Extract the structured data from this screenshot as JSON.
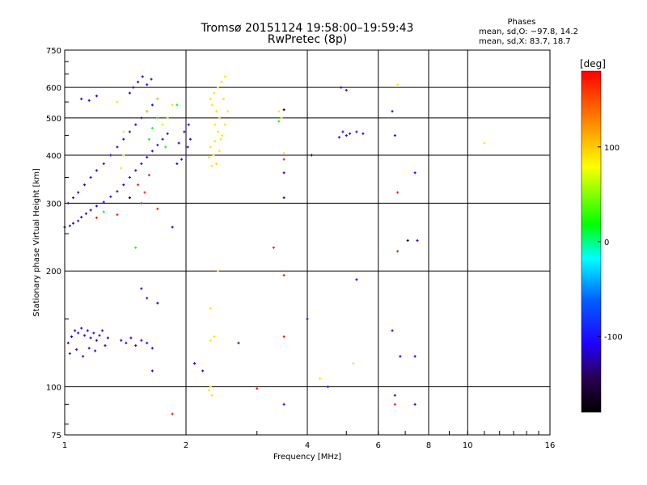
{
  "header": {
    "title_line1": "Tromsø 20151124 19:58:00–19:59:43",
    "title_line2": "RwPretec (8p)"
  },
  "phase_stats": {
    "title": "Phases",
    "o_line": "mean, sd,O: −97.8, 14.2",
    "x_line": "mean, sd,X:  83.7, 18.7"
  },
  "chart_data": {
    "type": "scatter",
    "title": "Tromsø 20151124 19:58:00–19:59:43",
    "subtitle": "RwPretec (8p)",
    "xlabel": "Frequency [MHz]",
    "ylabel": "Stationary phase Virtual Height [km]",
    "x_scale": "log",
    "y_scale": "log",
    "xlim": [
      1,
      16
    ],
    "ylim": [
      75,
      750
    ],
    "x_ticks": [
      1,
      2,
      4,
      6,
      8,
      10,
      16
    ],
    "x_tick_labels": [
      "1",
      "2",
      "4",
      "6",
      "8",
      "10",
      "16"
    ],
    "y_ticks": [
      75,
      100,
      200,
      300,
      400,
      500,
      600,
      750
    ],
    "y_tick_labels": [
      "75",
      "100",
      "200",
      "300",
      "400",
      "500",
      "600",
      "750"
    ],
    "grid": true,
    "colorbar": {
      "unit_label": "[deg]",
      "range": [
        -180,
        180
      ],
      "ticks": [
        100,
        0,
        -100
      ],
      "tick_labels": [
        "100",
        "0",
        "-100"
      ]
    },
    "series": [
      {
        "color_deg": -110,
        "points": [
          [
            1.0,
            260
          ],
          [
            1.03,
            262
          ],
          [
            1.05,
            266
          ],
          [
            1.08,
            270
          ],
          [
            1.1,
            276
          ],
          [
            1.13,
            282
          ],
          [
            1.16,
            288
          ],
          [
            1.2,
            295
          ],
          [
            1.25,
            302
          ],
          [
            1.3,
            312
          ],
          [
            1.35,
            322
          ],
          [
            1.4,
            335
          ],
          [
            1.45,
            350
          ],
          [
            1.5,
            365
          ],
          [
            1.55,
            380
          ],
          [
            1.6,
            395
          ],
          [
            1.65,
            410
          ],
          [
            1.7,
            425
          ],
          [
            1.75,
            440
          ],
          [
            1.8,
            455
          ],
          [
            1.02,
            300
          ],
          [
            1.05,
            310
          ],
          [
            1.08,
            320
          ],
          [
            1.12,
            335
          ],
          [
            1.16,
            350
          ],
          [
            1.2,
            365
          ],
          [
            1.25,
            380
          ],
          [
            1.3,
            400
          ],
          [
            1.35,
            420
          ],
          [
            1.4,
            440
          ],
          [
            1.45,
            460
          ],
          [
            1.5,
            480
          ],
          [
            1.55,
            500
          ],
          [
            1.6,
            520
          ],
          [
            1.65,
            540
          ],
          [
            1.7,
            560
          ],
          [
            1.9,
            380
          ],
          [
            1.95,
            390
          ],
          [
            2.0,
            400
          ],
          [
            2.02,
            420
          ],
          [
            2.05,
            440
          ],
          [
            1.92,
            430
          ],
          [
            1.98,
            460
          ],
          [
            2.03,
            480
          ],
          [
            1.48,
            600
          ],
          [
            1.52,
            620
          ],
          [
            1.56,
            640
          ],
          [
            1.6,
            610
          ],
          [
            1.45,
            580
          ],
          [
            1.64,
            630
          ],
          [
            1.1,
            560
          ],
          [
            1.15,
            555
          ],
          [
            1.2,
            570
          ],
          [
            1.02,
            130
          ],
          [
            1.04,
            135
          ],
          [
            1.06,
            140
          ],
          [
            1.08,
            138
          ],
          [
            1.1,
            142
          ],
          [
            1.12,
            136
          ],
          [
            1.14,
            140
          ],
          [
            1.16,
            134
          ],
          [
            1.18,
            138
          ],
          [
            1.2,
            132
          ],
          [
            1.22,
            136
          ],
          [
            1.24,
            140
          ],
          [
            1.26,
            128
          ],
          [
            1.28,
            134
          ],
          [
            1.03,
            122
          ],
          [
            1.07,
            125
          ],
          [
            1.11,
            120
          ],
          [
            1.15,
            126
          ],
          [
            1.19,
            124
          ],
          [
            1.38,
            132
          ],
          [
            1.42,
            130
          ],
          [
            1.46,
            134
          ],
          [
            1.5,
            128
          ],
          [
            1.55,
            132
          ],
          [
            1.6,
            130
          ],
          [
            1.65,
            126
          ],
          [
            1.55,
            180
          ],
          [
            1.6,
            170
          ],
          [
            1.7,
            165
          ],
          [
            1.65,
            110
          ],
          [
            1.85,
            260
          ],
          [
            4.9,
            460
          ],
          [
            5.0,
            450
          ],
          [
            5.1,
            455
          ],
          [
            5.3,
            460
          ],
          [
            5.5,
            455
          ],
          [
            4.8,
            445
          ],
          [
            4.85,
            600
          ],
          [
            5.0,
            590
          ],
          [
            2.1,
            115
          ],
          [
            2.2,
            110
          ],
          [
            2.7,
            130
          ],
          [
            3.5,
            360
          ],
          [
            3.5,
            310
          ],
          [
            3.5,
            90
          ],
          [
            4.0,
            150
          ],
          [
            4.5,
            100
          ],
          [
            5.3,
            190
          ],
          [
            6.5,
            140
          ],
          [
            6.5,
            520
          ],
          [
            6.6,
            450
          ],
          [
            6.8,
            120
          ],
          [
            6.6,
            95
          ],
          [
            7.4,
            360
          ],
          [
            7.4,
            120
          ],
          [
            7.5,
            240
          ],
          [
            7.4,
            90
          ]
        ]
      },
      {
        "color_deg": 90,
        "points": [
          [
            2.3,
            560
          ],
          [
            2.35,
            580
          ],
          [
            2.4,
            600
          ],
          [
            2.45,
            620
          ],
          [
            2.5,
            640
          ],
          [
            2.32,
            540
          ],
          [
            2.38,
            520
          ],
          [
            2.42,
            500
          ],
          [
            2.36,
            480
          ],
          [
            2.4,
            460
          ],
          [
            2.44,
            440
          ],
          [
            2.3,
            420
          ],
          [
            2.34,
            400
          ],
          [
            2.38,
            380
          ],
          [
            2.42,
            410
          ],
          [
            2.46,
            450
          ],
          [
            2.5,
            480
          ],
          [
            2.54,
            520
          ],
          [
            2.48,
            560
          ],
          [
            2.28,
            395
          ],
          [
            2.32,
            375
          ],
          [
            2.36,
            435
          ],
          [
            2.3,
            100
          ],
          [
            2.32,
            95
          ],
          [
            2.28,
            98
          ],
          [
            2.3,
            132
          ],
          [
            2.35,
            135
          ],
          [
            2.3,
            160
          ],
          [
            2.4,
            200
          ],
          [
            1.8,
            500
          ],
          [
            1.85,
            540
          ],
          [
            1.75,
            480
          ],
          [
            1.7,
            560
          ],
          [
            1.6,
            520
          ],
          [
            1.4,
            400
          ],
          [
            1.38,
            370
          ],
          [
            1.35,
            550
          ],
          [
            1.4,
            460
          ],
          [
            3.4,
            520
          ],
          [
            3.45,
            500
          ],
          [
            3.5,
            405
          ],
          [
            5.2,
            115
          ],
          [
            4.3,
            105
          ],
          [
            11.0,
            430
          ],
          [
            6.7,
            610
          ]
        ]
      },
      {
        "color_deg": 170,
        "points": [
          [
            1.52,
            335
          ],
          [
            1.58,
            320
          ],
          [
            1.62,
            355
          ],
          [
            1.55,
            300
          ],
          [
            1.35,
            280
          ],
          [
            1.2,
            275
          ],
          [
            3.3,
            230
          ],
          [
            3.5,
            195
          ],
          [
            3.5,
            135
          ],
          [
            3.5,
            390
          ],
          [
            3.0,
            99
          ],
          [
            1.85,
            85
          ],
          [
            6.7,
            320
          ],
          [
            6.7,
            225
          ],
          [
            6.6,
            90
          ],
          [
            1.7,
            290
          ]
        ]
      },
      {
        "color_deg": 20,
        "points": [
          [
            1.65,
            470
          ],
          [
            1.7,
            500
          ],
          [
            1.78,
            420
          ],
          [
            1.62,
            440
          ],
          [
            1.5,
            230
          ],
          [
            1.9,
            540
          ],
          [
            3.4,
            490
          ],
          [
            1.25,
            285
          ]
        ]
      },
      {
        "color_deg": -160,
        "points": [
          [
            3.5,
            525
          ],
          [
            4.1,
            400
          ],
          [
            7.1,
            240
          ],
          [
            1.45,
            310
          ]
        ]
      }
    ]
  }
}
